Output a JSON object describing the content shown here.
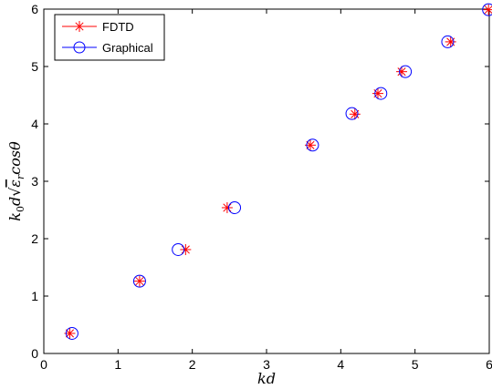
{
  "chart_data": {
    "type": "scatter",
    "xlabel": "kd",
    "ylabel": "k0 d √εr cosθ",
    "xlim": [
      0,
      6
    ],
    "ylim": [
      0,
      6
    ],
    "x_ticks": [
      0,
      1,
      2,
      3,
      4,
      5,
      6
    ],
    "y_ticks": [
      0,
      1,
      2,
      3,
      4,
      5,
      6
    ],
    "grid": false,
    "legend_position": "top-left",
    "series": [
      {
        "name": "FDTD",
        "marker": "asterisk",
        "color": "#ff0000",
        "points": [
          [
            0.35,
            0.35
          ],
          [
            1.29,
            1.26
          ],
          [
            1.91,
            1.81
          ],
          [
            2.47,
            2.54
          ],
          [
            3.59,
            3.63
          ],
          [
            4.19,
            4.17
          ],
          [
            4.5,
            4.53
          ],
          [
            4.82,
            4.91
          ],
          [
            5.48,
            5.43
          ],
          [
            5.99,
            5.99
          ]
        ]
      },
      {
        "name": "Graphical",
        "marker": "circle",
        "color": "#0000ff",
        "points": [
          [
            0.38,
            0.35
          ],
          [
            1.29,
            1.26
          ],
          [
            1.81,
            1.81
          ],
          [
            2.57,
            2.54
          ],
          [
            3.62,
            3.63
          ],
          [
            4.15,
            4.18
          ],
          [
            4.54,
            4.53
          ],
          [
            4.87,
            4.91
          ],
          [
            5.44,
            5.43
          ],
          [
            5.99,
            5.99
          ]
        ]
      }
    ]
  }
}
